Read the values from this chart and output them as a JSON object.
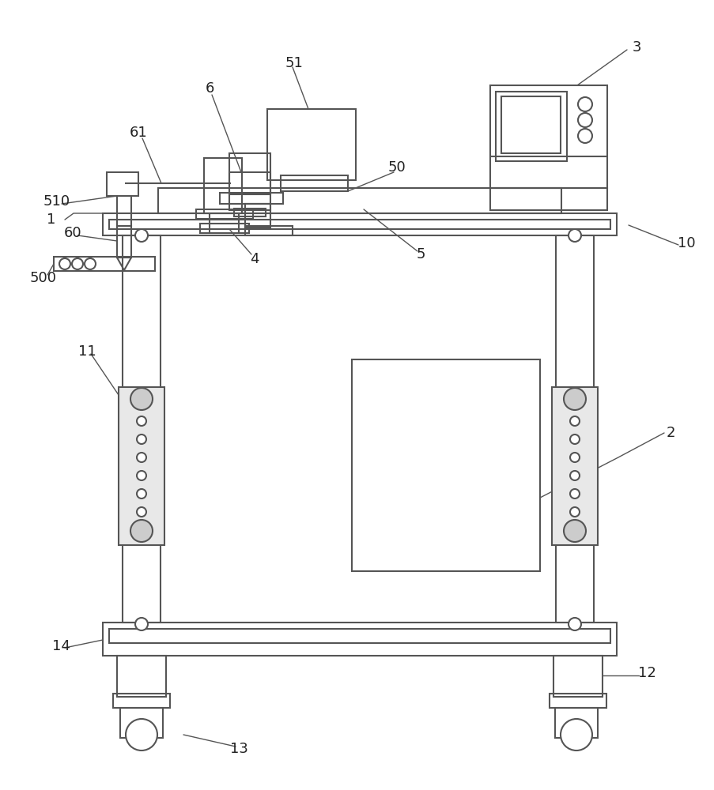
{
  "bg_color": "#ffffff",
  "line_color": "#555555",
  "lw": 1.5,
  "fig_w": 9.04,
  "fig_h": 10.0,
  "dpi": 100
}
